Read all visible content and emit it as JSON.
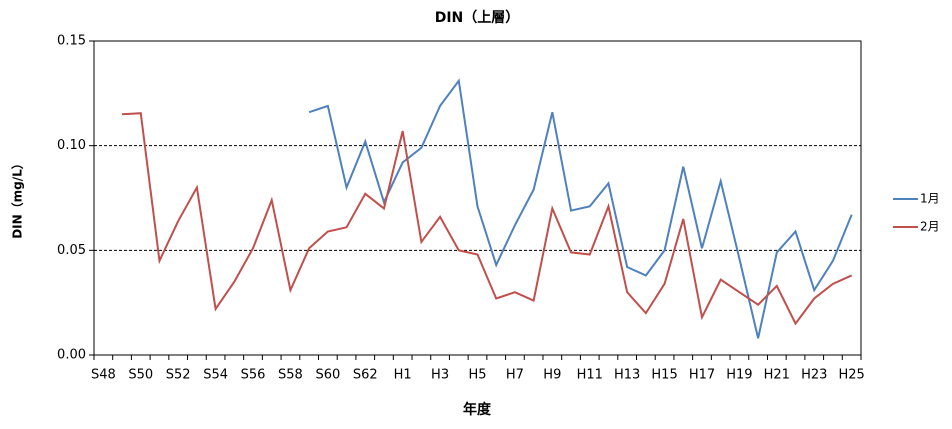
{
  "chart_data": {
    "type": "line",
    "title": "DIN（上層）",
    "x_label": "年度",
    "y_label": "DIN（mg/L）",
    "categories": [
      "S48",
      null,
      "S50",
      null,
      "S52",
      null,
      "S54",
      null,
      "S56",
      null,
      "S58",
      null,
      "S60",
      null,
      "S62",
      null,
      "H1",
      null,
      "H3",
      null,
      "H5",
      null,
      "H7",
      null,
      "H9",
      null,
      "H11",
      null,
      "H13",
      null,
      "H15",
      null,
      "H17",
      null,
      "H19",
      null,
      "H21",
      null,
      "H23",
      null,
      "H25"
    ],
    "series": [
      {
        "name": "1月",
        "color": "#4f81bd",
        "values": [
          null,
          null,
          null,
          null,
          null,
          null,
          null,
          null,
          null,
          null,
          null,
          0.116,
          0.119,
          0.08,
          0.102,
          0.073,
          0.092,
          0.099,
          0.119,
          0.131,
          0.071,
          0.043,
          0.062,
          0.079,
          0.116,
          0.069,
          0.071,
          0.082,
          0.042,
          0.038,
          0.05,
          0.09,
          0.051,
          0.083,
          0.046,
          0.008,
          0.049,
          0.059,
          0.031,
          0.045,
          0.067
        ]
      },
      {
        "name": "2月",
        "color": "#c0504d",
        "values": [
          null,
          0.115,
          0.1155,
          0.045,
          0.064,
          0.08,
          0.022,
          0.035,
          0.051,
          0.074,
          0.031,
          0.051,
          0.059,
          0.061,
          0.077,
          0.07,
          0.107,
          0.054,
          0.066,
          0.05,
          0.048,
          0.027,
          0.03,
          0.026,
          0.07,
          0.049,
          0.048,
          0.071,
          0.03,
          0.02,
          0.034,
          0.065,
          0.018,
          0.036,
          0.03,
          0.024,
          0.033,
          0.015,
          0.027,
          0.034,
          0.038
        ]
      }
    ],
    "ylim": [
      0,
      0.15
    ],
    "yticks": [
      {
        "value": 0,
        "label": "0.00"
      },
      0.05,
      {
        "value": 0.1,
        "label": "0.10"
      },
      0.15
    ],
    "grid": true,
    "legend": "right"
  }
}
